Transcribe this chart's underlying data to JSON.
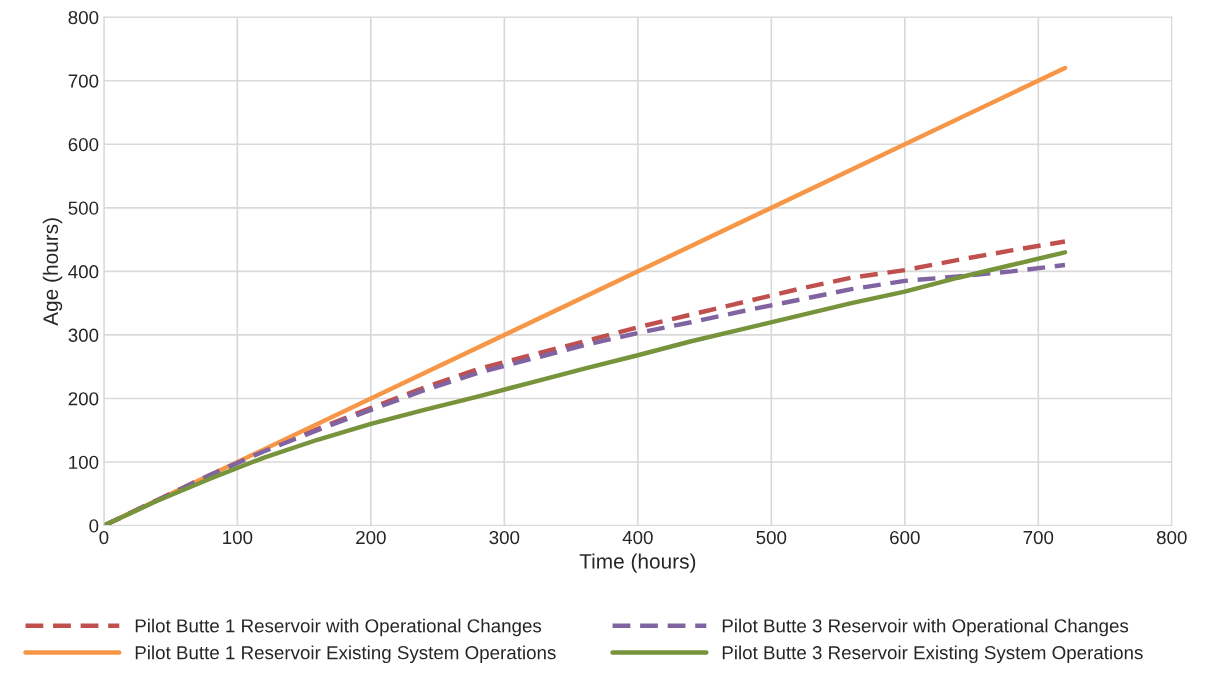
{
  "chart_data": {
    "type": "line",
    "xlabel": "Time (hours)",
    "ylabel": "Age (hours)",
    "xlim": [
      0,
      800
    ],
    "ylim": [
      0,
      800
    ],
    "xticks": [
      0,
      100,
      200,
      300,
      400,
      500,
      600,
      700,
      800
    ],
    "yticks": [
      0,
      100,
      200,
      300,
      400,
      500,
      600,
      700,
      800
    ],
    "grid": true,
    "legend": "bottom",
    "marker": "none",
    "series": [
      {
        "name": "Pilot Butte 1 Reservoir with Operational Changes",
        "color": "#c0504d",
        "line_style": "dashed",
        "x": [
          0,
          40,
          80,
          120,
          160,
          200,
          240,
          280,
          320,
          360,
          400,
          440,
          480,
          520,
          560,
          600,
          640,
          680,
          720
        ],
        "values": [
          0,
          40,
          80,
          118,
          152,
          185,
          217,
          246,
          268,
          290,
          312,
          332,
          352,
          372,
          390,
          402,
          418,
          433,
          447
        ]
      },
      {
        "name": "Pilot Butte 1 Reservoir Existing System Operations",
        "color": "#f79646",
        "line_style": "solid",
        "x": [
          0,
          720
        ],
        "values": [
          0,
          720
        ]
      },
      {
        "name": "Pilot Butte 3 Reservoir with Operational Changes",
        "color": "#8064a2",
        "line_style": "dashed",
        "x": [
          0,
          40,
          80,
          120,
          160,
          200,
          240,
          280,
          320,
          360,
          400,
          440,
          480,
          520,
          560,
          600,
          640,
          680,
          720
        ],
        "values": [
          0,
          40,
          80,
          117,
          150,
          182,
          213,
          240,
          262,
          284,
          303,
          320,
          338,
          355,
          372,
          385,
          392,
          400,
          410
        ]
      },
      {
        "name": "Pilot Butte 3 Reservoir Existing System Operations",
        "color": "#77933c",
        "line_style": "solid",
        "x": [
          0,
          40,
          80,
          120,
          160,
          200,
          240,
          280,
          320,
          360,
          400,
          440,
          480,
          520,
          560,
          600,
          640,
          680,
          720
        ],
        "values": [
          0,
          39,
          74,
          107,
          135,
          160,
          182,
          203,
          225,
          247,
          268,
          290,
          310,
          330,
          350,
          368,
          390,
          410,
          430
        ]
      }
    ]
  }
}
